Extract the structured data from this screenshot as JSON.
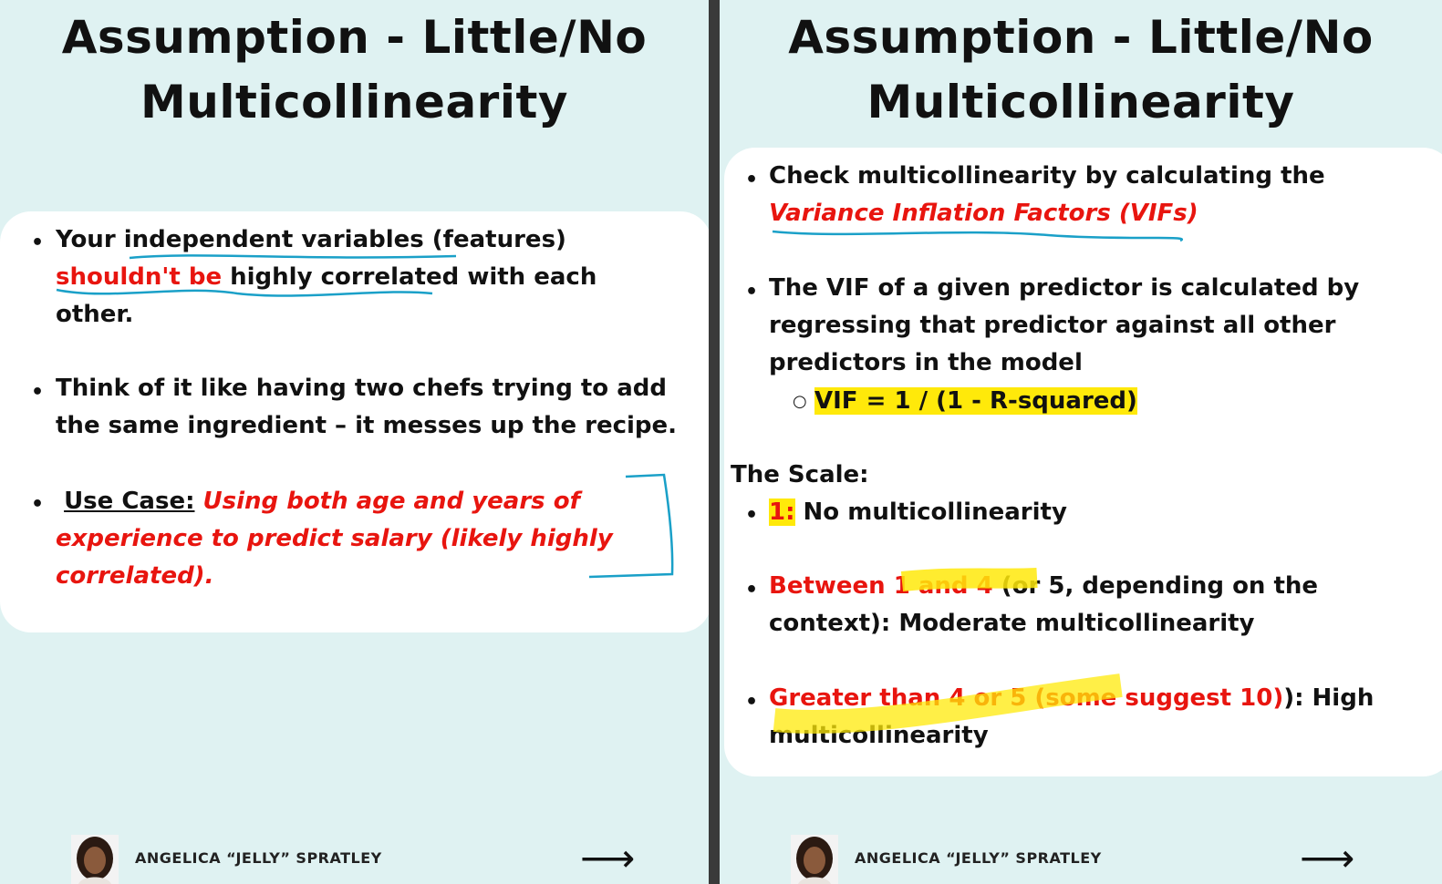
{
  "left": {
    "title_line1": "Assumption - Little/No",
    "title_line2": "Multicollinearity",
    "bullet1": {
      "a": "Your ",
      "b": "independent variables",
      "c": " (features)",
      "d": "shouldn't be",
      "e": " highly correlated with each",
      "f": "other."
    },
    "bullet2": {
      "line1": "Think of it like having two chefs trying to add",
      "line2": "the same ingredient – it messes up the recipe."
    },
    "bullet3": {
      "label": "Use Case:",
      "line1": "Using both age and years of",
      "line2": "experience to predict salary (likely highly",
      "line3": "correlated)."
    }
  },
  "right": {
    "title_line1": "Assumption - Little/No",
    "title_line2": "Multicollinearity",
    "bullet1": {
      "line1": "Check multicollinearity by calculating the",
      "line2": "Variance Inflation Factors (VIFs)"
    },
    "bullet2": {
      "line1": "The VIF of a given predictor is calculated by",
      "line2": "regressing that predictor against all other",
      "line3": "predictors in the model",
      "sub": "VIF = 1 / (1 - R-squared)"
    },
    "scale_heading": "The Scale:",
    "scale1": {
      "a": "1:",
      "b": " No multicollinearity"
    },
    "scale2": {
      "a": "Between 1 and 4",
      "b": " (or 5, depending on the",
      "line2": "context): Moderate multicollinearity"
    },
    "scale3": {
      "a": "Greater than 4 or 5 (some suggest 10)",
      "b": "): High",
      "line2": "multicollinearity"
    }
  },
  "footer": {
    "author": "ANGELICA “JELLY” SPRATLEY",
    "arrow": "⟶"
  },
  "colors": {
    "background": "#dff2f2",
    "emphasis_red": "#e8150f",
    "highlight_yellow": "#ffe90a",
    "annotation_blue": "#1aa0c8"
  }
}
